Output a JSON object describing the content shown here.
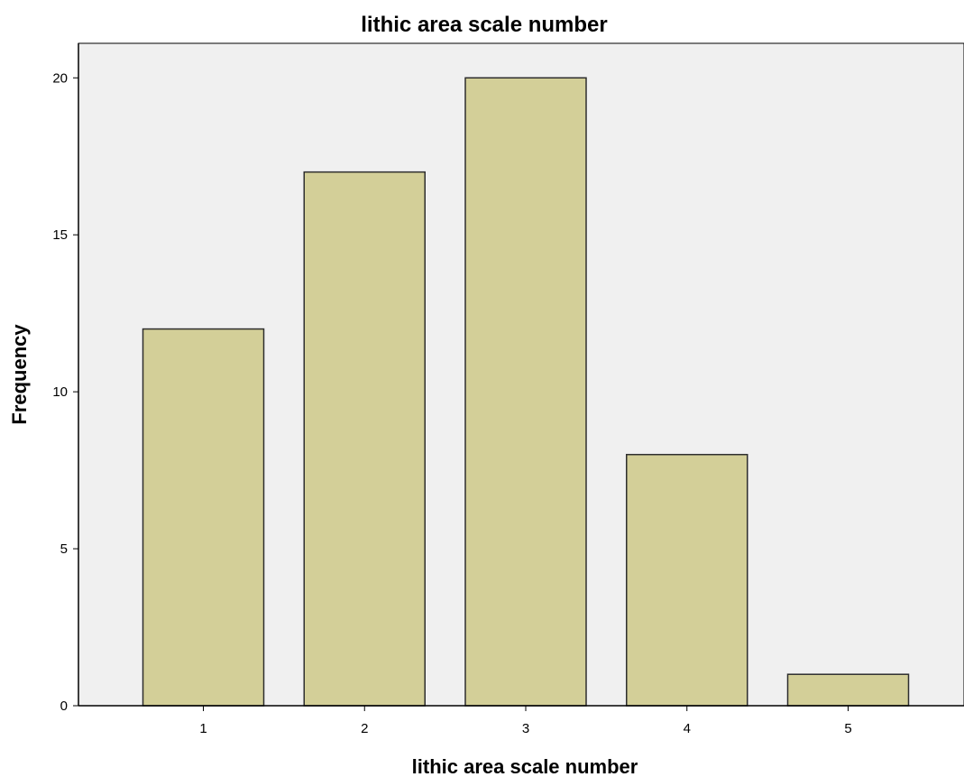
{
  "chart_data": {
    "type": "bar",
    "title": "lithic area scale number",
    "xlabel": "lithic area scale number",
    "ylabel": "Frequency",
    "categories": [
      "1",
      "2",
      "3",
      "4",
      "5"
    ],
    "values": [
      12,
      17,
      20,
      8,
      1
    ],
    "ylim": [
      0,
      21.1
    ],
    "yticks": [
      "0",
      "5",
      "10",
      "15",
      "20"
    ],
    "grid": false,
    "legend": "none",
    "colors": {
      "bar_fill": "#d3cf98",
      "bar_stroke": "#2e2e2e",
      "plot_background": "#f0f0f0",
      "axis": "#000000"
    }
  }
}
